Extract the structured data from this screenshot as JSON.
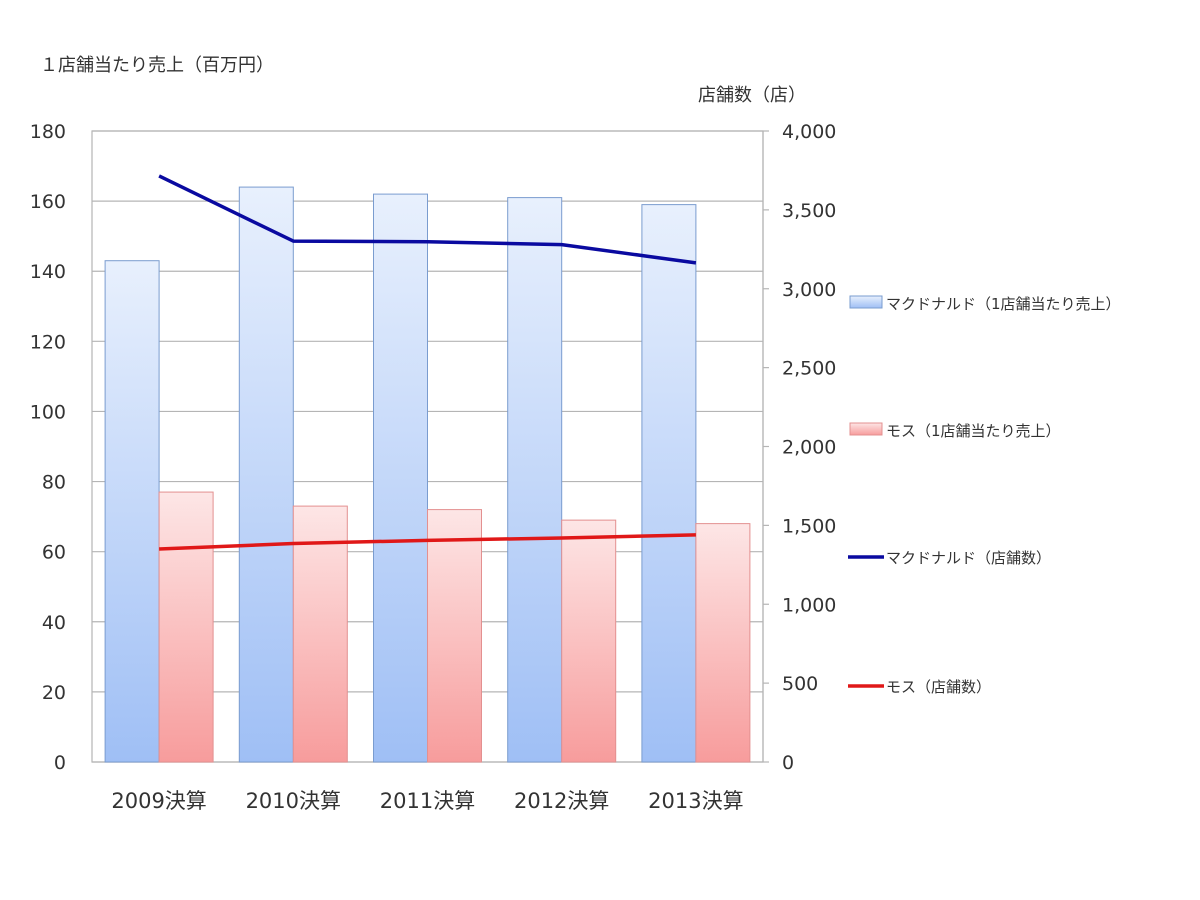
{
  "chart_data": {
    "type": "bar",
    "categories": [
      "2009決算",
      "2010決算",
      "2011決算",
      "2012決算",
      "2013決算"
    ],
    "y_left_label": "１店舗当たり売上（百万円）",
    "y_right_label": "店舗数（店）",
    "ylim_left": [
      0,
      180
    ],
    "ylim_right": [
      0,
      4000
    ],
    "left_ticks": [
      "0",
      "20",
      "40",
      "60",
      "80",
      "100",
      "120",
      "140",
      "160",
      "180"
    ],
    "right_ticks": [
      "0",
      "500",
      "1,000",
      "1,500",
      "2,000",
      "2,500",
      "3,000",
      "3,500",
      "4,000"
    ],
    "grid": true,
    "legend_position": "right",
    "series": [
      {
        "name": "マクドナルド（1店舗当たり売上）",
        "kind": "bar",
        "axis": "left",
        "color": "#9fbff5",
        "values": [
          143,
          164,
          162,
          161,
          159
        ]
      },
      {
        "name": "モス（1店舗当たり売上）",
        "kind": "bar",
        "axis": "left",
        "color": "#f79c9c",
        "values": [
          77,
          73,
          72,
          69,
          68
        ]
      },
      {
        "name": "マクドナルド（店舗数）",
        "kind": "line",
        "axis": "right",
        "color": "#0a0aa0",
        "values": [
          3715,
          3302,
          3298,
          3280,
          3164
        ]
      },
      {
        "name": "モス（店舗数）",
        "kind": "line",
        "axis": "right",
        "color": "#e01818",
        "values": [
          1350,
          1385,
          1405,
          1420,
          1440
        ]
      }
    ]
  }
}
